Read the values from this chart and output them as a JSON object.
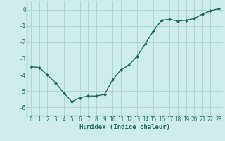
{
  "x": [
    0,
    1,
    2,
    3,
    4,
    5,
    6,
    7,
    8,
    9,
    10,
    11,
    12,
    13,
    14,
    15,
    16,
    17,
    18,
    19,
    20,
    21,
    22,
    23
  ],
  "y": [
    -3.5,
    -3.55,
    -4.0,
    -4.5,
    -5.1,
    -5.65,
    -5.4,
    -5.3,
    -5.3,
    -5.2,
    -4.3,
    -3.7,
    -3.4,
    -2.85,
    -2.1,
    -1.3,
    -0.65,
    -0.6,
    -0.7,
    -0.65,
    -0.55,
    -0.28,
    -0.08,
    0.05
  ],
  "line_color": "#1a6b5e",
  "marker": "D",
  "marker_size": 2.0,
  "bg_color": "#cdecea",
  "grid_color": "#b0d5d0",
  "xlabel": "Humidex (Indice chaleur)",
  "ylim": [
    -6.5,
    0.5
  ],
  "xlim": [
    -0.5,
    23.5
  ],
  "yticks": [
    0,
    -1,
    -2,
    -3,
    -4,
    -5,
    -6
  ],
  "xticks": [
    0,
    1,
    2,
    3,
    4,
    5,
    6,
    7,
    8,
    9,
    10,
    11,
    12,
    13,
    14,
    15,
    16,
    17,
    18,
    19,
    20,
    21,
    22,
    23
  ],
  "tick_color": "#1a6b5e",
  "xlabel_fontsize": 6.5,
  "tick_fontsize": 5.5,
  "line_width": 1.0
}
